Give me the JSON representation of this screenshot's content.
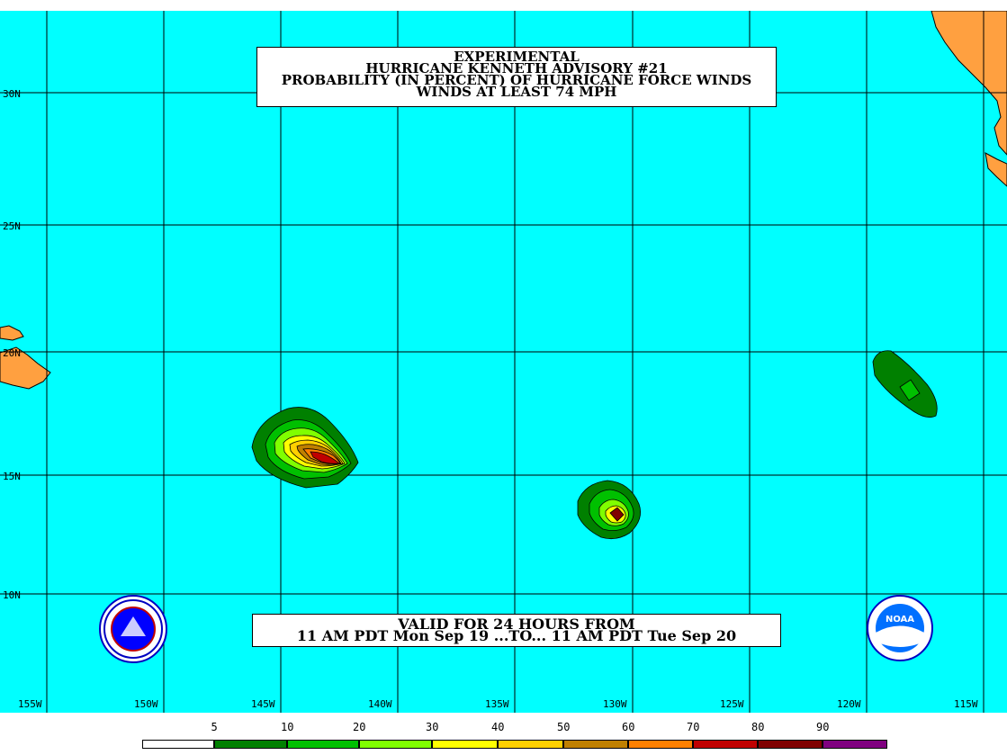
{
  "title": {
    "line1": "EXPERIMENTAL",
    "line2": "HURRICANE KENNETH ADVISORY #21",
    "line3": "PROBABILITY (IN PERCENT) OF HURRICANE FORCE WINDS",
    "line4": "WINDS AT LEAST 74 MPH"
  },
  "validity": {
    "line1": "VALID FOR 24 HOURS FROM",
    "line2": "11 AM PDT Mon Sep 19 ...TO... 11 AM PDT Tue Sep 20"
  },
  "axes": {
    "latitudes": [
      "30N",
      "25N",
      "20N",
      "15N",
      "10N"
    ],
    "longitudes": [
      "155W",
      "150W",
      "145W",
      "140W",
      "135W",
      "130W",
      "125W",
      "120W",
      "115W"
    ]
  },
  "legend": {
    "labels": [
      "5",
      "10",
      "20",
      "30",
      "40",
      "50",
      "60",
      "70",
      "80",
      "90"
    ],
    "colors": [
      "#ffffff",
      "#008000",
      "#00c000",
      "#80ff00",
      "#ffff00",
      "#ffd000",
      "#c08000",
      "#ff8000",
      "#c00000",
      "#800000",
      "#800080"
    ]
  },
  "colors": {
    "ocean": "#00ffff",
    "land": "#ffa040",
    "grid": "#000000"
  },
  "logos": {
    "left": "nws-seal-icon",
    "right": "noaa-logo-icon",
    "noaa_text": "NOAA"
  }
}
